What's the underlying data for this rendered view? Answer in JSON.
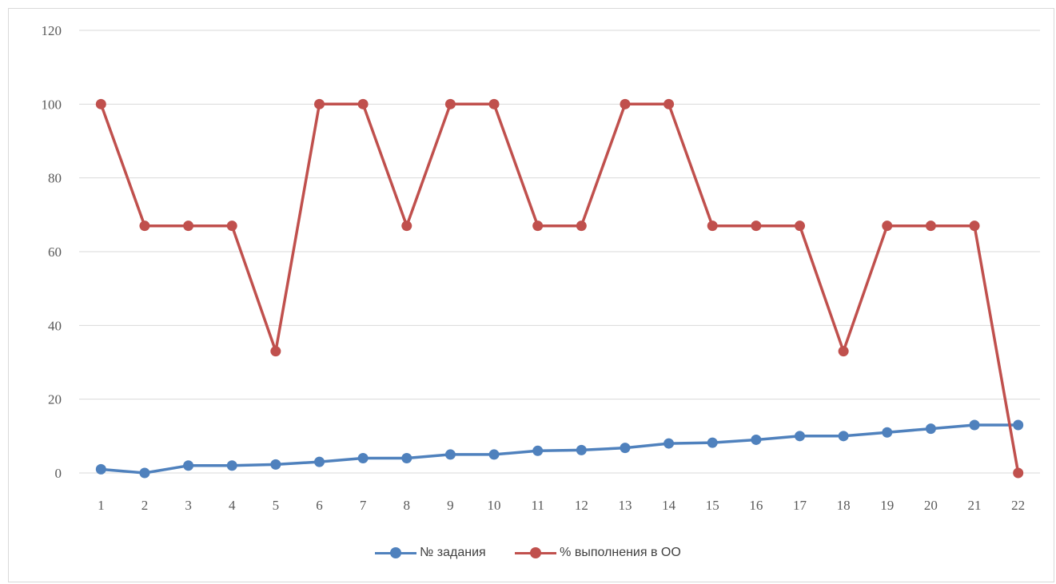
{
  "chart_data": {
    "type": "line",
    "categories": [
      "1",
      "2",
      "3",
      "4",
      "5",
      "6",
      "7",
      "8",
      "9",
      "10",
      "11",
      "12",
      "13",
      "14",
      "15",
      "16",
      "17",
      "18",
      "19",
      "20",
      "21",
      "22"
    ],
    "ylim": [
      0,
      120
    ],
    "yticks": [
      0,
      20,
      40,
      60,
      80,
      100,
      120
    ],
    "grid": true,
    "legend_position": "bottom",
    "series": [
      {
        "name": "№ задания",
        "color": "#4f81bd",
        "values": [
          1,
          0,
          2,
          2,
          2.3,
          3,
          4,
          4,
          5,
          5,
          6,
          6.2,
          6.8,
          8,
          8.2,
          9,
          10,
          10,
          11,
          12,
          13,
          13
        ]
      },
      {
        "name": "% выполнения в ОО",
        "color": "#c0504d",
        "values": [
          100,
          67,
          67,
          67,
          33,
          100,
          100,
          67,
          100,
          100,
          67,
          67,
          100,
          100,
          67,
          67,
          67,
          33,
          67,
          67,
          67,
          0
        ]
      }
    ]
  }
}
